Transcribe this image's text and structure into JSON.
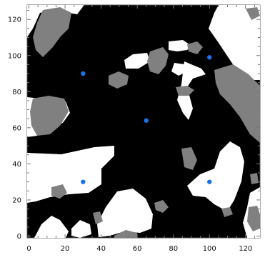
{
  "chart_data": {
    "type": "scatter",
    "title": "",
    "xlabel": "",
    "ylabel": "",
    "xlim": [
      -1,
      128
    ],
    "ylim": [
      -1,
      128
    ],
    "x_ticks": [
      "0",
      "20",
      "40",
      "60",
      "80",
      "100",
      "120"
    ],
    "y_ticks": [
      "0",
      "20",
      "40",
      "60",
      "80",
      "100",
      "120"
    ],
    "background_map": {
      "description_colors": {
        "black": "#000000",
        "white": "#ffffff",
        "gray": "#808080"
      }
    },
    "series": [
      {
        "x": [
          30,
          100,
          65,
          30,
          100
        ],
        "y": [
          90,
          99,
          64,
          30,
          30
        ],
        "color": "#1a73e8"
      }
    ]
  }
}
